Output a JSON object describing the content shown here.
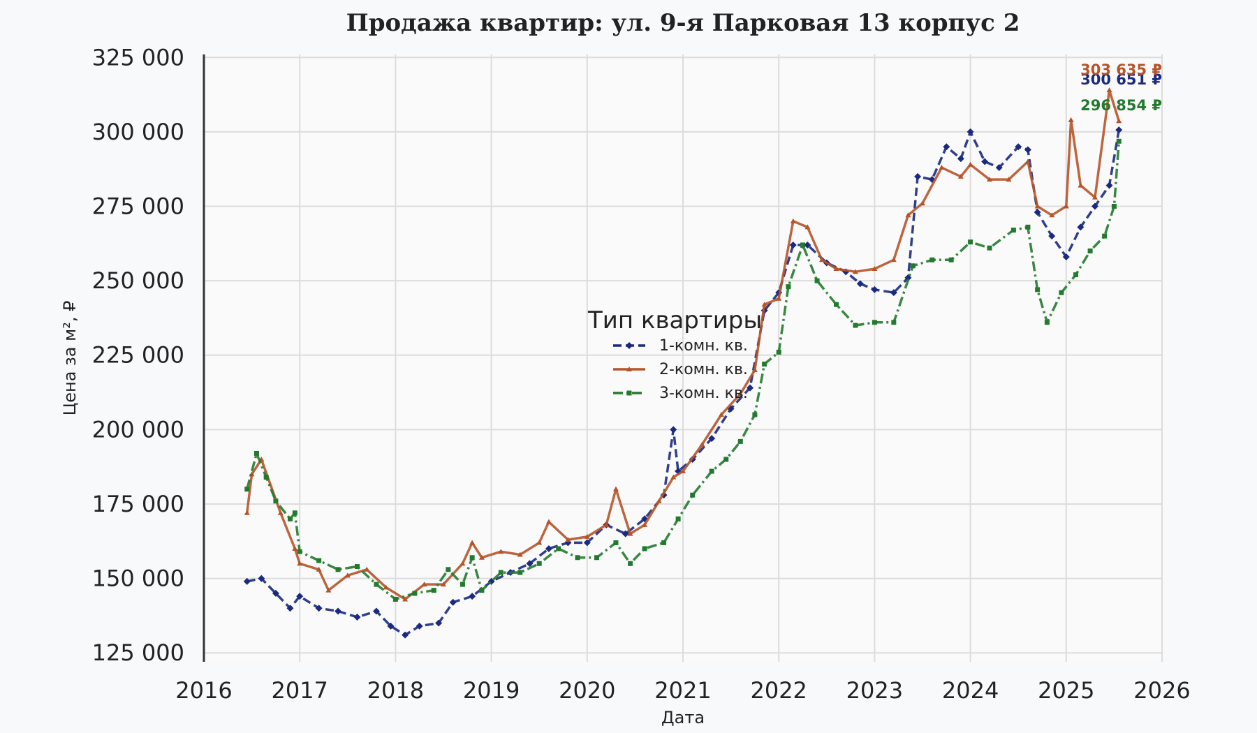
{
  "chart_data": {
    "type": "line",
    "title": "Продажа квартир: ул. 9-я Парковая 13 корпус 2",
    "xlabel": "Дата",
    "ylabel": "Цена за м², ₽",
    "xlim": [
      2016,
      2026
    ],
    "ylim": [
      122000,
      326000
    ],
    "x_ticks": [
      "2016",
      "2017",
      "2018",
      "2019",
      "2020",
      "2021",
      "2022",
      "2023",
      "2024",
      "2025",
      "2026"
    ],
    "y_ticks": [
      {
        "value": 125000,
        "label": "125 000"
      },
      {
        "value": 150000,
        "label": "150 000"
      },
      {
        "value": 175000,
        "label": "175 000"
      },
      {
        "value": 200000,
        "label": "200 000"
      },
      {
        "value": 225000,
        "label": "225 000"
      },
      {
        "value": 250000,
        "label": "250 000"
      },
      {
        "value": 275000,
        "label": "275 000"
      },
      {
        "value": 300000,
        "label": "300 000"
      },
      {
        "value": 325000,
        "label": "325 000"
      }
    ],
    "grid": true,
    "legend": {
      "title": "Тип квартиры",
      "placement": "center"
    },
    "series": [
      {
        "name": "1-комн. кв.",
        "color": "#1a2a80",
        "style": "dashed",
        "marker": "diamond",
        "end_label": "300 651 ₽",
        "points": [
          [
            2016.45,
            149000
          ],
          [
            2016.6,
            150000
          ],
          [
            2016.75,
            145000
          ],
          [
            2016.9,
            140000
          ],
          [
            2017.0,
            144000
          ],
          [
            2017.2,
            140000
          ],
          [
            2017.4,
            139000
          ],
          [
            2017.6,
            137000
          ],
          [
            2017.8,
            139000
          ],
          [
            2017.95,
            134000
          ],
          [
            2018.1,
            131000
          ],
          [
            2018.25,
            134000
          ],
          [
            2018.45,
            135000
          ],
          [
            2018.6,
            142000
          ],
          [
            2018.8,
            144000
          ],
          [
            2019.0,
            149000
          ],
          [
            2019.2,
            152000
          ],
          [
            2019.4,
            155000
          ],
          [
            2019.6,
            160000
          ],
          [
            2019.8,
            162000
          ],
          [
            2020.0,
            162000
          ],
          [
            2020.2,
            168000
          ],
          [
            2020.4,
            165000
          ],
          [
            2020.6,
            170000
          ],
          [
            2020.8,
            178000
          ],
          [
            2020.9,
            200000
          ],
          [
            2020.95,
            186000
          ],
          [
            2021.1,
            190000
          ],
          [
            2021.3,
            197000
          ],
          [
            2021.5,
            207000
          ],
          [
            2021.7,
            214000
          ],
          [
            2021.85,
            240000
          ],
          [
            2022.0,
            246000
          ],
          [
            2022.15,
            262000
          ],
          [
            2022.3,
            262000
          ],
          [
            2022.5,
            256000
          ],
          [
            2022.7,
            253000
          ],
          [
            2022.85,
            249000
          ],
          [
            2023.0,
            247000
          ],
          [
            2023.2,
            246000
          ],
          [
            2023.35,
            251000
          ],
          [
            2023.45,
            285000
          ],
          [
            2023.6,
            284000
          ],
          [
            2023.75,
            295000
          ],
          [
            2023.9,
            291000
          ],
          [
            2024.0,
            300000
          ],
          [
            2024.15,
            290000
          ],
          [
            2024.3,
            288000
          ],
          [
            2024.5,
            295000
          ],
          [
            2024.6,
            294000
          ],
          [
            2024.7,
            273000
          ],
          [
            2024.85,
            265000
          ],
          [
            2025.0,
            258000
          ],
          [
            2025.15,
            268000
          ],
          [
            2025.3,
            275000
          ],
          [
            2025.45,
            282000
          ],
          [
            2025.55,
            300651
          ]
        ]
      },
      {
        "name": "2-комн. кв.",
        "color": "#b5542a",
        "style": "solid",
        "marker": "triangle",
        "end_label": "303 635 ₽",
        "points": [
          [
            2016.45,
            172000
          ],
          [
            2016.5,
            185000
          ],
          [
            2016.6,
            190000
          ],
          [
            2016.8,
            172000
          ],
          [
            2016.95,
            160000
          ],
          [
            2017.0,
            155000
          ],
          [
            2017.2,
            153000
          ],
          [
            2017.3,
            146000
          ],
          [
            2017.5,
            151000
          ],
          [
            2017.7,
            153000
          ],
          [
            2017.9,
            147000
          ],
          [
            2018.1,
            143000
          ],
          [
            2018.3,
            148000
          ],
          [
            2018.5,
            148000
          ],
          [
            2018.7,
            155000
          ],
          [
            2018.8,
            162000
          ],
          [
            2018.9,
            157000
          ],
          [
            2019.1,
            159000
          ],
          [
            2019.3,
            158000
          ],
          [
            2019.5,
            162000
          ],
          [
            2019.6,
            169000
          ],
          [
            2019.8,
            163000
          ],
          [
            2020.0,
            164000
          ],
          [
            2020.2,
            168000
          ],
          [
            2020.3,
            180000
          ],
          [
            2020.45,
            165000
          ],
          [
            2020.6,
            168000
          ],
          [
            2020.75,
            176000
          ],
          [
            2020.9,
            184000
          ],
          [
            2021.0,
            186000
          ],
          [
            2021.2,
            195000
          ],
          [
            2021.4,
            205000
          ],
          [
            2021.6,
            212000
          ],
          [
            2021.75,
            220000
          ],
          [
            2021.85,
            242000
          ],
          [
            2022.0,
            244000
          ],
          [
            2022.15,
            270000
          ],
          [
            2022.3,
            268000
          ],
          [
            2022.45,
            257000
          ],
          [
            2022.6,
            254000
          ],
          [
            2022.8,
            253000
          ],
          [
            2023.0,
            254000
          ],
          [
            2023.2,
            257000
          ],
          [
            2023.35,
            272000
          ],
          [
            2023.5,
            276000
          ],
          [
            2023.7,
            288000
          ],
          [
            2023.9,
            285000
          ],
          [
            2024.0,
            289000
          ],
          [
            2024.2,
            284000
          ],
          [
            2024.4,
            284000
          ],
          [
            2024.6,
            290000
          ],
          [
            2024.7,
            275000
          ],
          [
            2024.85,
            272000
          ],
          [
            2025.0,
            275000
          ],
          [
            2025.05,
            304000
          ],
          [
            2025.15,
            282000
          ],
          [
            2025.3,
            278000
          ],
          [
            2025.45,
            314000
          ],
          [
            2025.55,
            303635
          ]
        ]
      },
      {
        "name": "3-комн. кв.",
        "color": "#237a2e",
        "style": "dashdot",
        "marker": "square",
        "end_label": "296 854 ₽",
        "points": [
          [
            2016.45,
            180000
          ],
          [
            2016.55,
            192000
          ],
          [
            2016.65,
            184000
          ],
          [
            2016.75,
            176000
          ],
          [
            2016.9,
            170000
          ],
          [
            2016.95,
            172000
          ],
          [
            2017.0,
            159000
          ],
          [
            2017.2,
            156000
          ],
          [
            2017.4,
            153000
          ],
          [
            2017.6,
            154000
          ],
          [
            2017.8,
            148000
          ],
          [
            2018.0,
            143000
          ],
          [
            2018.2,
            145000
          ],
          [
            2018.4,
            146000
          ],
          [
            2018.55,
            153000
          ],
          [
            2018.7,
            148000
          ],
          [
            2018.8,
            157000
          ],
          [
            2018.9,
            146000
          ],
          [
            2019.1,
            152000
          ],
          [
            2019.3,
            152000
          ],
          [
            2019.5,
            155000
          ],
          [
            2019.7,
            160000
          ],
          [
            2019.9,
            157000
          ],
          [
            2020.1,
            157000
          ],
          [
            2020.3,
            162000
          ],
          [
            2020.45,
            155000
          ],
          [
            2020.6,
            160000
          ],
          [
            2020.8,
            162000
          ],
          [
            2020.95,
            170000
          ],
          [
            2021.1,
            178000
          ],
          [
            2021.3,
            186000
          ],
          [
            2021.45,
            190000
          ],
          [
            2021.6,
            196000
          ],
          [
            2021.75,
            205000
          ],
          [
            2021.85,
            222000
          ],
          [
            2022.0,
            226000
          ],
          [
            2022.1,
            248000
          ],
          [
            2022.25,
            262000
          ],
          [
            2022.4,
            250000
          ],
          [
            2022.6,
            242000
          ],
          [
            2022.8,
            235000
          ],
          [
            2023.0,
            236000
          ],
          [
            2023.2,
            236000
          ],
          [
            2023.4,
            255000
          ],
          [
            2023.6,
            257000
          ],
          [
            2023.8,
            257000
          ],
          [
            2024.0,
            263000
          ],
          [
            2024.2,
            261000
          ],
          [
            2024.45,
            267000
          ],
          [
            2024.6,
            268000
          ],
          [
            2024.7,
            247000
          ],
          [
            2024.8,
            236000
          ],
          [
            2024.95,
            246000
          ],
          [
            2025.1,
            252000
          ],
          [
            2025.25,
            260000
          ],
          [
            2025.4,
            265000
          ],
          [
            2025.5,
            275000
          ],
          [
            2025.55,
            296854
          ]
        ]
      }
    ]
  }
}
